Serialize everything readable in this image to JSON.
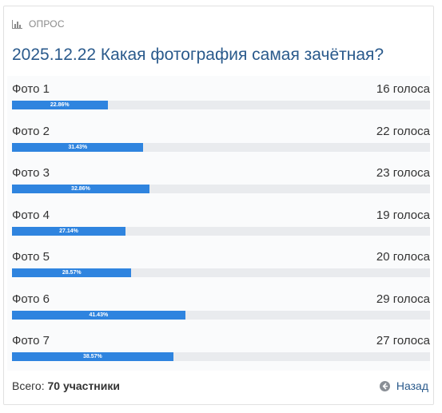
{
  "poll": {
    "section_label": "ОПРОС",
    "title": "2025.12.22 Какая фотография самая зачётная?",
    "options": [
      {
        "name": "Фото 1",
        "votes": "16 голоса",
        "percent_label": "22.86%",
        "percent": 22.86
      },
      {
        "name": "Фото 2",
        "votes": "22 голоса",
        "percent_label": "31.43%",
        "percent": 31.43
      },
      {
        "name": "Фото 3",
        "votes": "23 голоса",
        "percent_label": "32.86%",
        "percent": 32.86
      },
      {
        "name": "Фото 4",
        "votes": "19 голоса",
        "percent_label": "27.14%",
        "percent": 27.14
      },
      {
        "name": "Фото 5",
        "votes": "20 голоса",
        "percent_label": "28.57%",
        "percent": 28.57
      },
      {
        "name": "Фото 6",
        "votes": "29 голоса",
        "percent_label": "41.43%",
        "percent": 41.43
      },
      {
        "name": "Фото 7",
        "votes": "27 голоса",
        "percent_label": "38.57%",
        "percent": 38.57
      }
    ],
    "total_label": "Всего:",
    "total_value": "70 участники",
    "back_label": "Назад"
  },
  "icons": {
    "section": "bar-chart-icon",
    "back": "arrow-left-circle-icon"
  },
  "colors": {
    "title": "#2a5a8c",
    "bar_fill": "#2f84df",
    "bar_track": "#e9ebee",
    "back_link": "#2a5a8c"
  }
}
